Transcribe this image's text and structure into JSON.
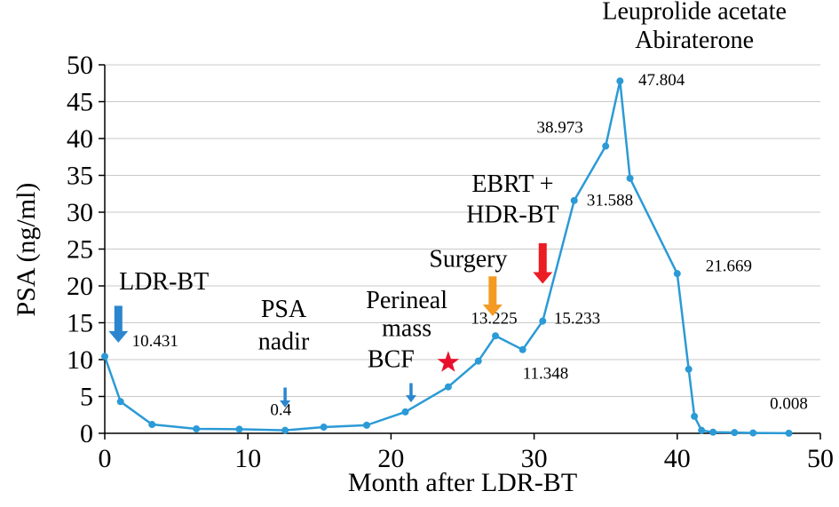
{
  "chart_data": {
    "type": "line",
    "title": "",
    "xlabel": "Month after LDR-BT",
    "ylabel": "PSA (ng/ml)",
    "xlim": [
      0,
      50
    ],
    "ylim": [
      0,
      50
    ],
    "x_ticks": [
      0,
      10,
      20,
      30,
      40,
      50
    ],
    "y_ticks": [
      0,
      5,
      10,
      15,
      20,
      25,
      30,
      35,
      40,
      45,
      50
    ],
    "grid": "horizontal",
    "legend": "none",
    "colors": {
      "line": "#2b9ad6",
      "blue": "#2b86cf",
      "orange": "#f59a23",
      "red": "#ec1c24",
      "star_red": "#e8112d",
      "grid": "#c9c9c9",
      "axis": "#000000",
      "text": "#000000"
    },
    "series": [
      {
        "name": "PSA",
        "x": [
          0,
          1.1,
          3.3,
          6.4,
          9.4,
          12.6,
          15.3,
          18.3,
          21,
          24,
          26.1,
          27.3,
          29.2,
          30.6,
          32.8,
          35,
          36,
          36.7,
          40,
          40.8,
          41.2,
          41.7,
          42.5,
          44,
          45.3,
          47.8
        ],
        "y": [
          10.431,
          4.3,
          1.2,
          0.6,
          0.55,
          0.4,
          0.84,
          1.1,
          2.9,
          6.3,
          9.8,
          13.225,
          11.348,
          15.233,
          31.588,
          38.973,
          47.804,
          34.6,
          21.669,
          8.7,
          2.3,
          0.4,
          0.15,
          0.1,
          0.05,
          0.008
        ]
      }
    ],
    "point_labels": [
      {
        "text": "10.431",
        "x": 1.9,
        "y": 11.8,
        "anchor": "start"
      },
      {
        "text": "0.4",
        "x": 12.3,
        "y": 2.5,
        "anchor": "middle"
      },
      {
        "text": "13.225",
        "x": 27.2,
        "y": 14.9,
        "anchor": "middle"
      },
      {
        "text": "15.233",
        "x": 33.0,
        "y": 14.9,
        "anchor": "middle"
      },
      {
        "text": "11.348",
        "x": 30.8,
        "y": 7.4,
        "anchor": "middle"
      },
      {
        "text": "31.588",
        "x": 35.3,
        "y": 30.9,
        "anchor": "middle"
      },
      {
        "text": "38.973",
        "x": 31.8,
        "y": 40.8,
        "anchor": "middle"
      },
      {
        "text": "47.804",
        "x": 38.9,
        "y": 47.2,
        "anchor": "middle"
      },
      {
        "text": "21.669",
        "x": 43.6,
        "y": 22.0,
        "anchor": "middle"
      },
      {
        "text": "0.008",
        "x": 47.8,
        "y": 3.3,
        "anchor": "middle"
      }
    ],
    "annotations": [
      {
        "text": "Leuprolide acetate",
        "x": 41.2,
        "y": 56.2,
        "anchor": "middle",
        "name": "leuprolide-acetate-label"
      },
      {
        "text": "Abiraterone",
        "x": 41.2,
        "y": 52.3,
        "anchor": "middle",
        "name": "abiraterone-label"
      },
      {
        "text": "LDR-BT",
        "x": 1.0,
        "y": 19.5,
        "anchor": "start",
        "name": "ldr-bt-label"
      },
      {
        "text": "PSA",
        "x": 12.5,
        "y": 15.8,
        "anchor": "middle",
        "name": "psa-nadir-label-line1"
      },
      {
        "text": "nadir",
        "x": 12.5,
        "y": 11.4,
        "anchor": "middle",
        "name": "psa-nadir-label-line2"
      },
      {
        "text": "BCF",
        "x": 20.0,
        "y": 9.0,
        "anchor": "middle",
        "name": "bcf-label"
      },
      {
        "text": "Perineal",
        "x": 21.1,
        "y": 17.0,
        "anchor": "middle",
        "name": "perineal-mass-label-line1"
      },
      {
        "text": "mass",
        "x": 21.1,
        "y": 13.2,
        "anchor": "middle",
        "name": "perineal-mass-label-line2"
      },
      {
        "text": "Surgery",
        "x": 25.4,
        "y": 22.6,
        "anchor": "middle",
        "name": "surgery-label"
      },
      {
        "text": "EBRT +",
        "x": 28.5,
        "y": 32.8,
        "anchor": "middle",
        "name": "ebrt-hdr-bt-label-line1"
      },
      {
        "text": "HDR-BT",
        "x": 28.5,
        "y": 28.6,
        "anchor": "middle",
        "name": "ebrt-hdr-bt-label-line2"
      }
    ],
    "arrows": [
      {
        "x": 0.95,
        "from": 17.3,
        "to": 12.3,
        "style": "thick",
        "color": "blue",
        "name": "ldr-bt-arrow-icon"
      },
      {
        "x": 12.6,
        "from": 6.2,
        "to": 3.5,
        "style": "thin",
        "color": "blue",
        "name": "psa-nadir-arrow-icon"
      },
      {
        "x": 21.4,
        "from": 6.8,
        "to": 4.2,
        "style": "thin",
        "color": "blue",
        "name": "bcf-arrow-icon"
      },
      {
        "x": 27.1,
        "from": 21.3,
        "to": 15.9,
        "style": "thick",
        "color": "orange",
        "name": "surgery-arrow-icon"
      },
      {
        "x": 30.6,
        "from": 25.8,
        "to": 20.3,
        "style": "thick",
        "color": "red",
        "name": "ebrt-hdr-bt-arrow-icon"
      }
    ],
    "star": {
      "x": 24.0,
      "y": 9.6
    }
  }
}
